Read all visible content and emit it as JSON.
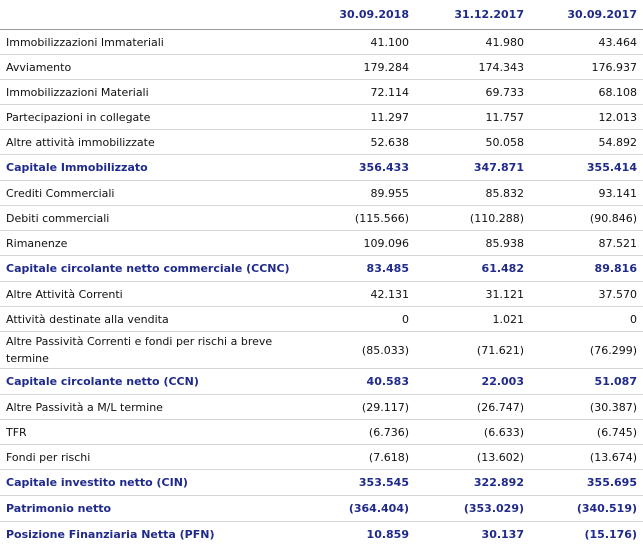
{
  "header": [
    "",
    "30.09.2018",
    "31.12.2017",
    "30.09.2017"
  ],
  "rows": [
    {
      "label": "Immobilizzazioni Immateriali",
      "v1": "41.100",
      "v2": "41.980",
      "v3": "43.464",
      "total": false,
      "tall": false
    },
    {
      "label": "Avviamento",
      "v1": "179.284",
      "v2": "174.343",
      "v3": "176.937",
      "total": false,
      "tall": false
    },
    {
      "label": "Immobilizzazioni Materiali",
      "v1": "72.114",
      "v2": "69.733",
      "v3": "68.108",
      "total": false,
      "tall": false
    },
    {
      "label": "Partecipazioni in collegate",
      "v1": "11.297",
      "v2": "11.757",
      "v3": "12.013",
      "total": false,
      "tall": false
    },
    {
      "label": "Altre attività immobilizzate",
      "v1": "52.638",
      "v2": "50.058",
      "v3": "54.892",
      "total": false,
      "tall": false
    },
    {
      "label": "Capitale Immobilizzato",
      "v1": "356.433",
      "v2": "347.871",
      "v3": "355.414",
      "total": true,
      "tall": false
    },
    {
      "label": "Crediti Commerciali",
      "v1": "89.955",
      "v2": "85.832",
      "v3": "93.141",
      "total": false,
      "tall": false
    },
    {
      "label": "Debiti commerciali",
      "v1": "(115.566)",
      "v2": "(110.288)",
      "v3": "(90.846)",
      "total": false,
      "tall": false
    },
    {
      "label": "Rimanenze",
      "v1": "109.096",
      "v2": "85.938",
      "v3": "87.521",
      "total": false,
      "tall": false
    },
    {
      "label": "Capitale circolante netto commerciale (CCNC)",
      "v1": "83.485",
      "v2": "61.482",
      "v3": "89.816",
      "total": true,
      "tall": false
    },
    {
      "label": "Altre Attività Correnti",
      "v1": "42.131",
      "v2": "31.121",
      "v3": "37.570",
      "total": false,
      "tall": false
    },
    {
      "label": "Attività destinate alla vendita",
      "v1": "0",
      "v2": "1.021",
      "v3": "0",
      "total": false,
      "tall": false
    },
    {
      "label": "Altre Passività Correnti e fondi per rischi a breve termine",
      "v1": "(85.033)",
      "v2": "(71.621)",
      "v3": "(76.299)",
      "total": false,
      "tall": true
    },
    {
      "label": "Capitale circolante netto (CCN)",
      "v1": "40.583",
      "v2": "22.003",
      "v3": "51.087",
      "total": true,
      "tall": false
    },
    {
      "label": "Altre Passività a M/L termine",
      "v1": "(29.117)",
      "v2": "(26.747)",
      "v3": "(30.387)",
      "total": false,
      "tall": false
    },
    {
      "label": "TFR",
      "v1": "(6.736)",
      "v2": "(6.633)",
      "v3": "(6.745)",
      "total": false,
      "tall": false
    },
    {
      "label": "Fondi per rischi",
      "v1": "(7.618)",
      "v2": "(13.602)",
      "v3": "(13.674)",
      "total": false,
      "tall": false
    },
    {
      "label": "Capitale investito netto (CIN)",
      "v1": "353.545",
      "v2": "322.892",
      "v3": "355.695",
      "total": true,
      "tall": false
    },
    {
      "label": "Patrimonio netto",
      "v1": "(364.404)",
      "v2": "(353.029)",
      "v3": "(340.519)",
      "total": true,
      "tall": false
    },
    {
      "label": "Posizione Finanziaria Netta (PFN)",
      "v1": "10.859",
      "v2": "30.137",
      "v3": "(15.176)",
      "total": true,
      "tall": false
    }
  ]
}
